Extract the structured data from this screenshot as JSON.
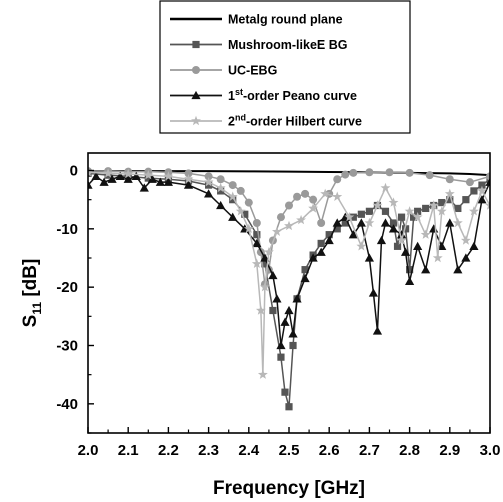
{
  "chart_data": {
    "type": "line",
    "xlabel": "Frequency [GHz]",
    "ylabel_main": "S",
    "ylabel_sub": "11",
    "ylabel_unit": " [dB]",
    "xlim": [
      2.0,
      3.0
    ],
    "ylim": [
      -45,
      3
    ],
    "xticks": [
      2.0,
      2.1,
      2.2,
      2.3,
      2.4,
      2.5,
      2.6,
      2.7,
      2.8,
      2.9,
      3.0
    ],
    "xtick_labels": [
      "2.0",
      "2.1",
      "2.2",
      "2.3",
      "2.4",
      "2.5",
      "2.6",
      "2.7",
      "2.8",
      "2.9",
      "3.0"
    ],
    "yticks": [
      0,
      -10,
      -20,
      -30,
      -40
    ],
    "ytick_labels": [
      "0",
      "-10",
      "-20",
      "-30",
      "-40"
    ],
    "grid": false,
    "legend_position": "top-center, outside plot",
    "series": [
      {
        "name": "Metalg round plane",
        "legend_main": "Metalg round plane",
        "legend_sup": "",
        "legend_rest": "",
        "color": "#000000",
        "marker": "none",
        "x": [
          2.0,
          2.1,
          2.2,
          2.3,
          2.4,
          2.5,
          2.6,
          2.7,
          2.8,
          2.9,
          2.95,
          3.0
        ],
        "y": [
          -0.1,
          -0.1,
          -0.1,
          -0.1,
          -0.15,
          -0.2,
          -0.25,
          -0.3,
          -0.4,
          -0.5,
          -0.6,
          -0.8
        ]
      },
      {
        "name": "Mushroom-likeE BG",
        "legend_main": "Mushroom-likeE BG",
        "legend_sup": "",
        "legend_rest": "",
        "color": "#555555",
        "marker": "square",
        "x": [
          2.0,
          2.05,
          2.1,
          2.15,
          2.2,
          2.25,
          2.3,
          2.33,
          2.36,
          2.39,
          2.42,
          2.44,
          2.46,
          2.48,
          2.49,
          2.5,
          2.51,
          2.52,
          2.54,
          2.56,
          2.58,
          2.6,
          2.62,
          2.64,
          2.66,
          2.68,
          2.7,
          2.72,
          2.74,
          2.76,
          2.77,
          2.78,
          2.79,
          2.8,
          2.81,
          2.82,
          2.84,
          2.86,
          2.88,
          2.9,
          2.92,
          2.94,
          2.96,
          2.98,
          3.0
        ],
        "y": [
          -0.5,
          -0.8,
          -1.0,
          -1.3,
          -1.5,
          -1.8,
          -2.5,
          -3.5,
          -5.0,
          -7.5,
          -11.0,
          -16.0,
          -24.0,
          -32.0,
          -38.0,
          -40.5,
          -30.0,
          -22.0,
          -17.0,
          -14.5,
          -12.5,
          -11.0,
          -10.0,
          -9.0,
          -8.0,
          -7.5,
          -7.0,
          -6.0,
          -7.0,
          -9.0,
          -13.0,
          -8.0,
          -10.0,
          -17.0,
          -8.0,
          -7.0,
          -6.5,
          -6.0,
          -5.5,
          -5.0,
          -6.5,
          -5.0,
          -3.5,
          -2.5,
          -1.5
        ]
      },
      {
        "name": "UC-EBG",
        "legend_main": "UC-EBG",
        "legend_sup": "",
        "legend_rest": "",
        "color": "#9a9a9a",
        "marker": "circle",
        "x": [
          2.0,
          2.05,
          2.1,
          2.15,
          2.2,
          2.25,
          2.3,
          2.33,
          2.36,
          2.38,
          2.4,
          2.42,
          2.43,
          2.44,
          2.45,
          2.46,
          2.48,
          2.5,
          2.52,
          2.54,
          2.56,
          2.58,
          2.6,
          2.62,
          2.64,
          2.66,
          2.7,
          2.75,
          2.8,
          2.85,
          2.9,
          2.95,
          3.0
        ],
        "y": [
          -0.1,
          -0.1,
          -0.2,
          -0.2,
          -0.3,
          -0.5,
          -1.0,
          -1.5,
          -2.5,
          -3.5,
          -5.5,
          -9.0,
          -14.0,
          -19.5,
          -17.0,
          -12.0,
          -8.0,
          -6.0,
          -4.5,
          -4.0,
          -5.0,
          -9.0,
          -4.0,
          -1.5,
          -0.7,
          -0.4,
          -0.3,
          -0.3,
          -0.4,
          -0.8,
          -1.5,
          -2.0,
          -1.0
        ]
      },
      {
        "name": "1st-order Peano curve",
        "legend_main": "1",
        "legend_sup": "st",
        "legend_rest": "-order Peano curve",
        "color": "#111111",
        "marker": "triangle",
        "x": [
          2.0,
          2.02,
          2.04,
          2.06,
          2.08,
          2.1,
          2.12,
          2.14,
          2.16,
          2.18,
          2.2,
          2.25,
          2.3,
          2.33,
          2.36,
          2.39,
          2.42,
          2.44,
          2.46,
          2.47,
          2.48,
          2.49,
          2.5,
          2.51,
          2.52,
          2.54,
          2.56,
          2.58,
          2.6,
          2.62,
          2.64,
          2.66,
          2.68,
          2.7,
          2.71,
          2.72,
          2.73,
          2.74,
          2.76,
          2.78,
          2.79,
          2.8,
          2.82,
          2.84,
          2.86,
          2.88,
          2.9,
          2.92,
          2.94,
          2.96,
          2.98,
          3.0
        ],
        "y": [
          -2.5,
          -1.0,
          -2.0,
          -1.5,
          -1.0,
          -1.5,
          -1.0,
          -3.0,
          -1.5,
          -2.0,
          -2.0,
          -2.5,
          -4.0,
          -6.0,
          -8.0,
          -10.0,
          -12.5,
          -15.0,
          -18.0,
          -22.0,
          -30.0,
          -26.0,
          -24.0,
          -28.0,
          -22.0,
          -18.5,
          -15.0,
          -14.0,
          -12.0,
          -9.0,
          -8.0,
          -11.0,
          -9.0,
          -15.0,
          -21.0,
          -27.5,
          -12.0,
          -9.0,
          -10.0,
          -11.0,
          -14.0,
          -19.0,
          -13.0,
          -17.0,
          -10.0,
          -13.0,
          -9.0,
          -17.0,
          -15.0,
          -13.0,
          -5.0,
          -2.0
        ]
      },
      {
        "name": "2nd-order Hilbert curve",
        "legend_main": "2",
        "legend_sup": "nd",
        "legend_rest": "-order Hilbert curve",
        "color": "#b8b8b8",
        "marker": "star",
        "x": [
          2.0,
          2.05,
          2.1,
          2.15,
          2.2,
          2.25,
          2.3,
          2.33,
          2.36,
          2.38,
          2.4,
          2.42,
          2.43,
          2.435,
          2.44,
          2.45,
          2.47,
          2.5,
          2.53,
          2.56,
          2.59,
          2.62,
          2.65,
          2.68,
          2.7,
          2.72,
          2.74,
          2.76,
          2.78,
          2.8,
          2.82,
          2.84,
          2.86,
          2.87,
          2.88,
          2.9,
          2.92,
          2.94,
          2.96,
          2.98,
          3.0
        ],
        "y": [
          -0.3,
          -0.5,
          -0.6,
          -0.8,
          -1.0,
          -1.5,
          -2.0,
          -3.0,
          -4.5,
          -7.0,
          -10.0,
          -16.0,
          -24.0,
          -35.0,
          -20.0,
          -14.0,
          -10.5,
          -9.5,
          -8.5,
          -6.5,
          -4.0,
          -4.5,
          -8.0,
          -13.0,
          -9.0,
          -6.0,
          -3.0,
          -5.5,
          -12.0,
          -7.0,
          -8.0,
          -11.0,
          -6.0,
          -15.0,
          -7.0,
          -4.0,
          -9.0,
          -12.0,
          -7.0,
          -3.5,
          -6.0
        ]
      }
    ]
  }
}
